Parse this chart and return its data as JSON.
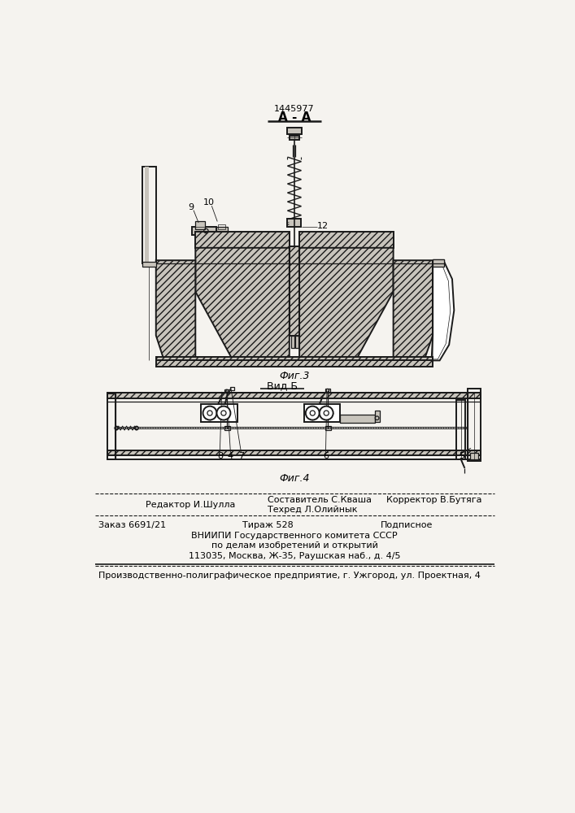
{
  "patent_number": "1445977",
  "section_label": "А - А",
  "fig3_label": "Фиг.3",
  "fig4_label": "Фиг.4",
  "vid_b_label": "Вид Б",
  "label_9": "9",
  "label_10": "10",
  "label_12": "12",
  "label_4": "4",
  "label_5": "5",
  "label_6": "6",
  "label_7": "7",
  "label_8": "8",
  "footer_line1_left": "Редактор И.Шулла",
  "footer_line1_center": "Составитель С.Кваша",
  "footer_line1_right": "Корректор В.Бутяга",
  "footer_line2_center": "Техред Л.Олийнык",
  "footer_line3_left": "Заказ 6691/21",
  "footer_line3_center": "Тираж 528",
  "footer_line3_right": "Подписное",
  "footer_line4": "ВНИИПИ Государственного комитета СССР",
  "footer_line5": "по делам изобретений и открытий",
  "footer_line6": "113035, Москва, Ж-35, Раушская наб., д. 4/5",
  "footer_line7": "Производственно-полиграфическое предприятие, г. Ужгород, ул. Проектная, 4",
  "bg_color": "#f5f3ef",
  "line_color": "#1a1a1a"
}
